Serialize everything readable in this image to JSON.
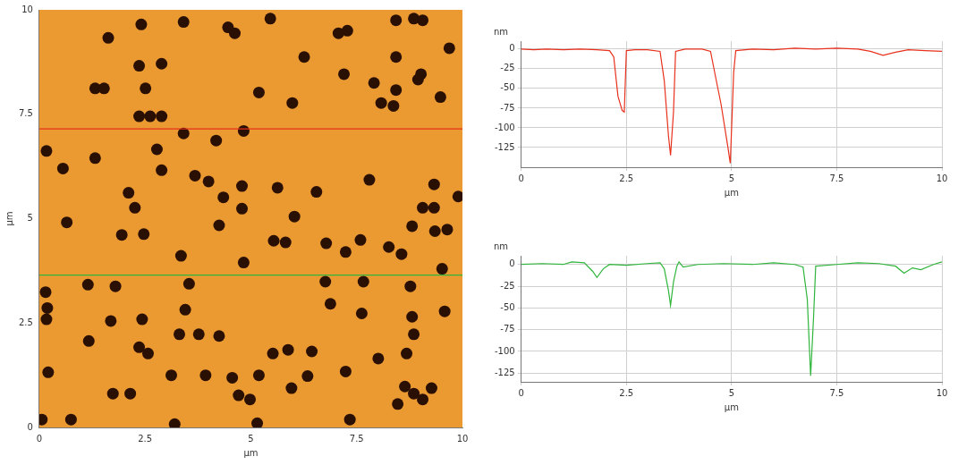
{
  "chart_data": [
    {
      "type": "scatter",
      "x_label": "µm",
      "y_label": "µm",
      "xlim": [
        0,
        10
      ],
      "ylim": [
        0,
        10
      ],
      "xticks": [
        0,
        2.5,
        5,
        7.5,
        10
      ],
      "yticks": [
        0,
        2.5,
        5,
        7.5,
        10
      ],
      "grid": false,
      "series": [
        {
          "type": "scatter",
          "color": "#2a0f03",
          "marker": "circle",
          "x": [
            1.63,
            2.41,
            3.41,
            4.46,
            4.62,
            5.46,
            7.07,
            7.28,
            8.43,
            8.85,
            9.06,
            9.69,
            8.43,
            9.02,
            6.26,
            2.36,
            2.89,
            7.2,
            7.91,
            8.43,
            8.95,
            1.32,
            1.53,
            2.51,
            5.19,
            5.98,
            8.08,
            8.37,
            9.48,
            2.36,
            2.62,
            2.89,
            0.17,
            2.78,
            3.41,
            4.18,
            4.83,
            0.56,
            1.32,
            2.89,
            3.68,
            4.0,
            4.35,
            4.79,
            5.63,
            6.55,
            7.8,
            9.33,
            9.33,
            9.9,
            2.11,
            2.26,
            9.06,
            0.65,
            2.47,
            1.95,
            4.25,
            4.79,
            6.03,
            6.78,
            7.24,
            7.59,
            8.26,
            8.81,
            9.35,
            9.64,
            8.56,
            5.54,
            5.82,
            4.83,
            3.35,
            9.52,
            0.15,
            1.15,
            1.8,
            3.54,
            6.76,
            7.66,
            8.77,
            0.19,
            0.17,
            1.69,
            2.43,
            3.45,
            6.88,
            7.62,
            8.81,
            9.58,
            2.36,
            2.57,
            3.31,
            3.77,
            4.25,
            1.17,
            8.85,
            5.52,
            5.88,
            6.44,
            8.01,
            8.68,
            3.12,
            3.93,
            4.56,
            5.19,
            6.34,
            7.24,
            0.21,
            1.74,
            2.15,
            4.71,
            4.98,
            5.96,
            8.64,
            8.85,
            9.06,
            8.47,
            9.27,
            0.75,
            3.2,
            5.15,
            7.34,
            0.06
          ],
          "values": [
            9.33,
            9.65,
            9.71,
            9.58,
            9.44,
            9.79,
            9.44,
            9.5,
            9.75,
            9.79,
            9.75,
            9.08,
            8.87,
            8.46,
            8.87,
            8.66,
            8.71,
            8.46,
            8.25,
            8.08,
            8.33,
            8.12,
            8.12,
            8.12,
            8.02,
            7.77,
            7.77,
            7.7,
            7.91,
            7.45,
            7.45,
            7.45,
            6.62,
            6.66,
            7.04,
            6.87,
            7.1,
            6.2,
            6.45,
            6.16,
            6.03,
            5.89,
            5.51,
            5.78,
            5.74,
            5.64,
            5.93,
            5.82,
            5.26,
            5.53,
            5.62,
            5.26,
            5.26,
            4.91,
            4.63,
            4.61,
            4.84,
            5.24,
            5.05,
            4.41,
            4.2,
            4.49,
            4.32,
            4.82,
            4.7,
            4.74,
            4.15,
            4.47,
            4.43,
            3.95,
            4.11,
            3.8,
            3.24,
            3.42,
            3.38,
            3.44,
            3.49,
            3.49,
            3.38,
            2.86,
            2.59,
            2.55,
            2.59,
            2.82,
            2.96,
            2.73,
            2.65,
            2.78,
            1.92,
            1.77,
            2.23,
            2.23,
            2.19,
            2.07,
            2.23,
            1.77,
            1.86,
            1.82,
            1.65,
            1.77,
            1.25,
            1.25,
            1.19,
            1.25,
            1.23,
            1.34,
            1.32,
            0.81,
            0.81,
            0.77,
            0.67,
            0.94,
            0.98,
            0.81,
            0.67,
            0.56,
            0.94,
            0.19,
            0.08,
            0.1,
            0.19,
            0.19
          ]
        },
        {
          "type": "line",
          "color": "#e8301c",
          "line_style": "solid",
          "x": [
            0,
            10
          ],
          "values": [
            7.15,
            7.15
          ]
        },
        {
          "type": "line",
          "color": "#2fb53c",
          "line_style": "solid",
          "x": [
            0,
            10
          ],
          "values": [
            3.65,
            3.65
          ]
        }
      ]
    },
    {
      "type": "line",
      "x_label": "µm",
      "y_label": "nm",
      "xlim": [
        0,
        10
      ],
      "ylim": [
        -150,
        10
      ],
      "xticks": [
        0,
        2.5,
        5,
        7.5,
        10
      ],
      "yticks": [
        0,
        -25,
        -50,
        -75,
        -100,
        -125
      ],
      "grid": true,
      "series": [
        {
          "type": "line",
          "color": "#e8301c",
          "line_style": "solid",
          "x": [
            0,
            0.3,
            0.6,
            1.0,
            1.4,
            1.8,
            2.1,
            2.2,
            2.3,
            2.4,
            2.45,
            2.5,
            2.7,
            3.0,
            3.3,
            3.4,
            3.5,
            3.55,
            3.62,
            3.67,
            3.9,
            4.3,
            4.5,
            4.6,
            4.75,
            4.9,
            4.97,
            5.05,
            5.1,
            5.5,
            6.0,
            6.5,
            7.0,
            7.5,
            8.0,
            8.3,
            8.6,
            8.9,
            9.2,
            9.6,
            10
          ],
          "values": [
            0,
            -1,
            0,
            -1,
            0,
            -1,
            -2,
            -10,
            -60,
            -78,
            -80,
            -2,
            -1,
            -1,
            -3,
            -40,
            -110,
            -135,
            -80,
            -3,
            0,
            0,
            -3,
            -30,
            -70,
            -120,
            -145,
            -30,
            -2,
            0,
            -1,
            1,
            0,
            1,
            0,
            -3,
            -8,
            -4,
            -1,
            -2,
            -3
          ]
        }
      ]
    },
    {
      "type": "line",
      "x_label": "µm",
      "y_label": "nm",
      "xlim": [
        0,
        10
      ],
      "ylim": [
        -135,
        10
      ],
      "xticks": [
        0,
        2.5,
        5,
        7.5,
        10
      ],
      "yticks": [
        0,
        -25,
        -50,
        -75,
        -100,
        -125
      ],
      "grid": true,
      "series": [
        {
          "type": "line",
          "color": "#2fb53c",
          "line_style": "solid",
          "x": [
            0,
            0.5,
            1.0,
            1.2,
            1.5,
            1.7,
            1.8,
            1.95,
            2.1,
            2.5,
            3.0,
            3.3,
            3.4,
            3.5,
            3.55,
            3.62,
            3.7,
            3.75,
            3.85,
            4.2,
            4.8,
            5.5,
            6.0,
            6.5,
            6.7,
            6.8,
            6.88,
            6.95,
            7.0,
            7.5,
            8.0,
            8.5,
            8.9,
            9.1,
            9.3,
            9.5,
            9.8,
            10
          ],
          "values": [
            0,
            1,
            0,
            3,
            2,
            -8,
            -15,
            -5,
            0,
            -1,
            1,
            2,
            -5,
            -30,
            -47,
            -20,
            -2,
            3,
            -3,
            0,
            1,
            0,
            2,
            0,
            -3,
            -40,
            -128,
            -60,
            -2,
            0,
            2,
            1,
            -2,
            -10,
            -4,
            -6,
            0,
            3
          ]
        }
      ]
    }
  ]
}
